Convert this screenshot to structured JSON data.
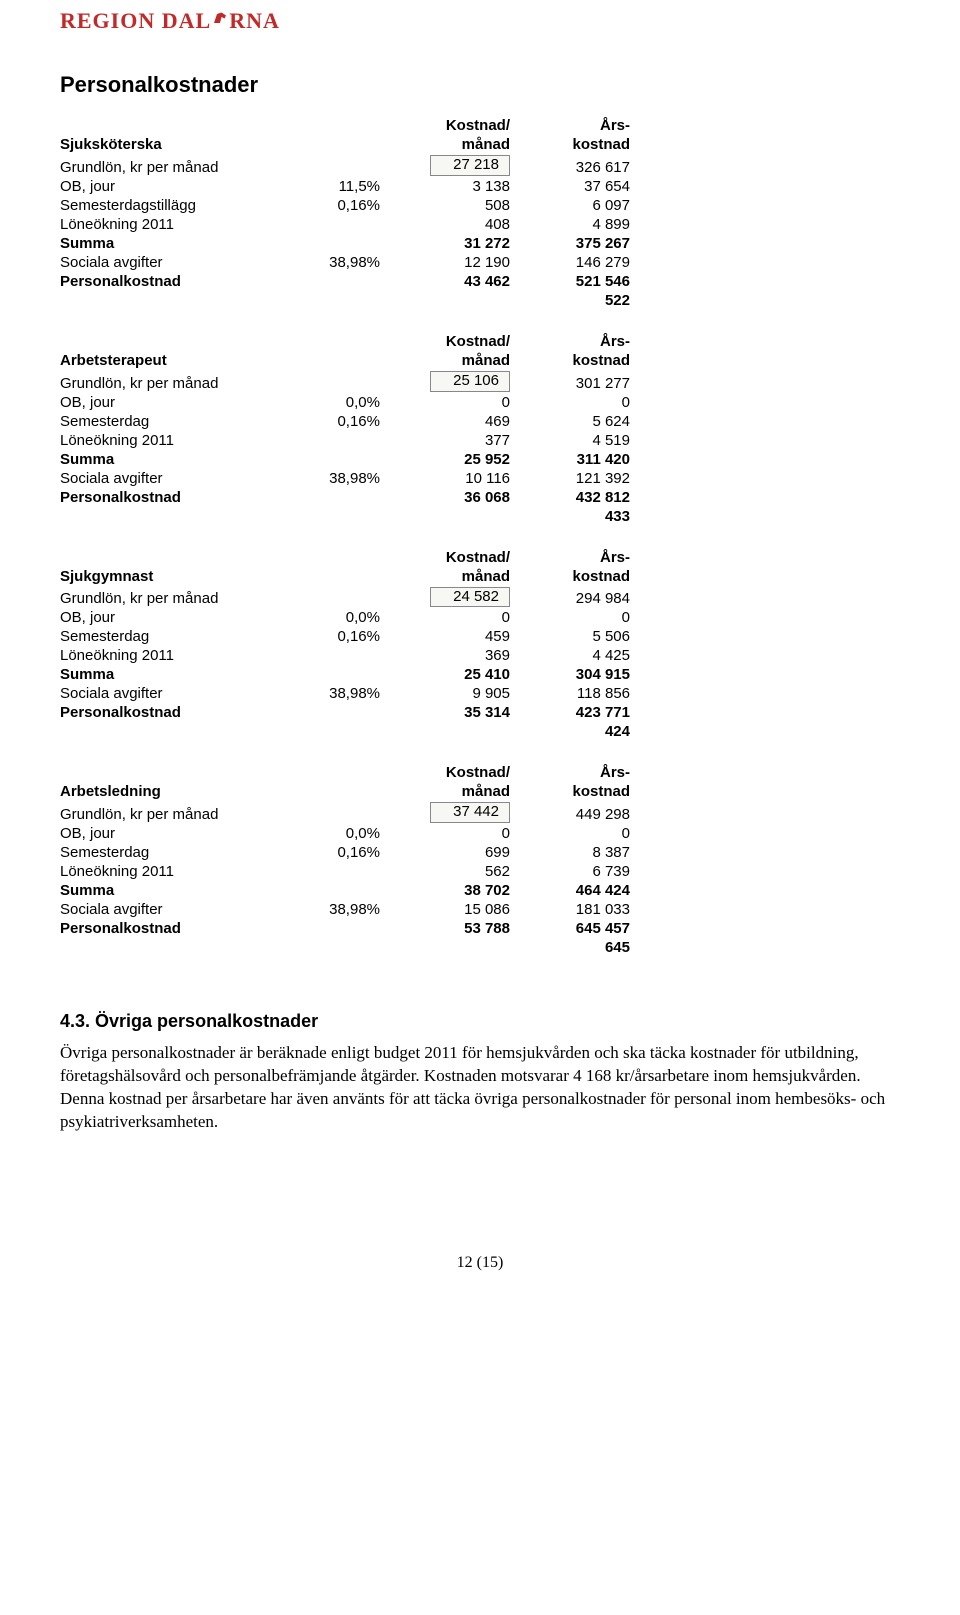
{
  "logo_text_pre": "REGION DAL",
  "logo_text_post": "RNA",
  "section_title": "Personalkostnader",
  "header": {
    "kost_top": "Kostnad/",
    "kost_bot": "månad",
    "ars_top": "Års-",
    "ars_bot": "kostnad"
  },
  "tables": [
    {
      "role": "Sjuksköterska",
      "rows": [
        {
          "label": "Grundlön, kr per månad",
          "pct": "",
          "kost": "27 218",
          "ars": "326 617",
          "boxed": true
        },
        {
          "label": "OB, jour",
          "pct": "11,5%",
          "kost": "3 138",
          "ars": "37 654"
        },
        {
          "label": "Semesterdagstillägg",
          "pct": "0,16%",
          "kost": "508",
          "ars": "6 097"
        },
        {
          "label": "Löneökning 2011",
          "pct": "",
          "kost": "408",
          "ars": "4 899"
        },
        {
          "label": "Summa",
          "pct": "",
          "kost": "31 272",
          "ars": "375 267",
          "bold": true
        },
        {
          "label": "Sociala avgifter",
          "pct": "38,98%",
          "kost": "12 190",
          "ars": "146 279"
        },
        {
          "label": "Personalkostnad",
          "pct": "",
          "kost": "43 462",
          "ars": "521 546",
          "bold": true
        },
        {
          "label": "",
          "pct": "",
          "kost": "",
          "ars": "522",
          "bold": true
        }
      ]
    },
    {
      "role": "Arbetsterapeut",
      "rows": [
        {
          "label": "Grundlön, kr per månad",
          "pct": "",
          "kost": "25 106",
          "ars": "301 277",
          "boxed": true
        },
        {
          "label": "OB, jour",
          "pct": "0,0%",
          "kost": "0",
          "ars": "0"
        },
        {
          "label": "Semesterdag",
          "pct": "0,16%",
          "kost": "469",
          "ars": "5 624"
        },
        {
          "label": "Löneökning 2011",
          "pct": "",
          "kost": "377",
          "ars": "4 519"
        },
        {
          "label": "Summa",
          "pct": "",
          "kost": "25 952",
          "ars": "311 420",
          "bold": true
        },
        {
          "label": "Sociala avgifter",
          "pct": "38,98%",
          "kost": "10 116",
          "ars": "121 392"
        },
        {
          "label": "Personalkostnad",
          "pct": "",
          "kost": "36 068",
          "ars": "432 812",
          "bold": true
        },
        {
          "label": "",
          "pct": "",
          "kost": "",
          "ars": "433",
          "bold": true
        }
      ]
    },
    {
      "role": "Sjukgymnast",
      "gap": true,
      "rows": [
        {
          "label": "Grundlön, kr per månad",
          "pct": "",
          "kost": "24 582",
          "ars": "294 984",
          "boxed": true
        },
        {
          "label": "OB, jour",
          "pct": "0,0%",
          "kost": "0",
          "ars": "0"
        },
        {
          "label": "Semesterdag",
          "pct": "0,16%",
          "kost": "459",
          "ars": "5 506"
        },
        {
          "label": "Löneökning 2011",
          "pct": "",
          "kost": "369",
          "ars": "4 425"
        },
        {
          "label": "Summa",
          "pct": "",
          "kost": "25 410",
          "ars": "304 915",
          "bold": true
        },
        {
          "label": "Sociala avgifter",
          "pct": "38,98%",
          "kost": "9 905",
          "ars": "118 856"
        },
        {
          "label": "Personalkostnad",
          "pct": "",
          "kost": "35 314",
          "ars": "423 771",
          "bold": true
        },
        {
          "label": "",
          "pct": "",
          "kost": "",
          "ars": "424",
          "bold": true
        }
      ]
    },
    {
      "role": "Arbetsledning",
      "rows": [
        {
          "label": "Grundlön, kr per månad",
          "pct": "",
          "kost": "37 442",
          "ars": "449 298",
          "boxed": true
        },
        {
          "label": "OB, jour",
          "pct": "0,0%",
          "kost": "0",
          "ars": "0"
        },
        {
          "label": "Semesterdag",
          "pct": "0,16%",
          "kost": "699",
          "ars": "8 387"
        },
        {
          "label": "Löneökning 2011",
          "pct": "",
          "kost": "562",
          "ars": "6 739"
        },
        {
          "label": "Summa",
          "pct": "",
          "kost": "38 702",
          "ars": "464 424",
          "bold": true
        },
        {
          "label": "Sociala avgifter",
          "pct": "38,98%",
          "kost": "15 086",
          "ars": "181 033"
        },
        {
          "label": "Personalkostnad",
          "pct": "",
          "kost": "53 788",
          "ars": "645 457",
          "bold": true
        },
        {
          "label": "",
          "pct": "",
          "kost": "",
          "ars": "645",
          "bold": true
        }
      ]
    }
  ],
  "subsection_title": "4.3. Övriga personalkostnader",
  "body_paragraph": "Övriga personalkostnader är beräknade enligt budget 2011 för hemsjukvården och ska täcka kostnader för utbildning, företagshälsovård och personalbefrämjande åtgärder. Kostnaden motsvarar 4 168 kr/årsarbetare inom hemsjukvården. Denna kostnad per årsarbetare har även använts för att täcka övriga personalkostnader för personal inom hembesöks- och psykiatriverksamheten.",
  "page_number": "12 (15)"
}
